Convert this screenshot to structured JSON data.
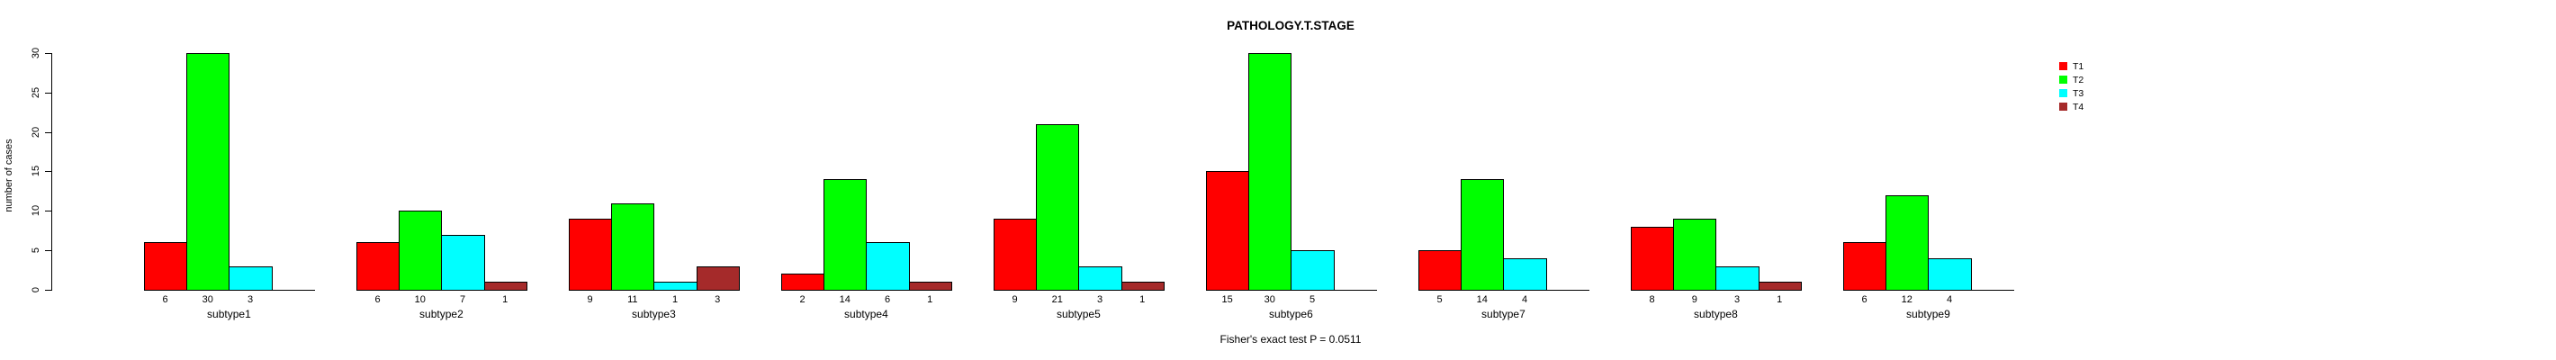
{
  "title": "PATHOLOGY.T.STAGE",
  "annotation": "Fisher's exact test P = 0.0511",
  "y_axis": {
    "label": "number of cases",
    "ticks": [
      "0",
      "5",
      "10",
      "15",
      "20",
      "25",
      "30"
    ]
  },
  "legend": {
    "position": "right",
    "items": [
      {
        "label": "T1",
        "color": "#FF0000"
      },
      {
        "label": "T2",
        "color": "#00FF00"
      },
      {
        "label": "T3",
        "color": "#00FFFF"
      },
      {
        "label": "T4",
        "color": "#A52A2A"
      }
    ]
  },
  "chart_data": {
    "type": "bar",
    "title": "PATHOLOGY.T.STAGE",
    "xlabel": "",
    "ylabel": "number of cases",
    "ylim": [
      0,
      30
    ],
    "grid": false,
    "legend_position": "right",
    "bar_value_labels": "shown under each bar; blank when value is 0",
    "categories": [
      "subtype1",
      "subtype2",
      "subtype3",
      "subtype4",
      "subtype5",
      "subtype6",
      "subtype7",
      "subtype8",
      "subtype9"
    ],
    "series": [
      {
        "name": "T1",
        "color": "#FF0000",
        "values": [
          6,
          6,
          9,
          2,
          9,
          15,
          5,
          8,
          6
        ]
      },
      {
        "name": "T2",
        "color": "#00FF00",
        "values": [
          30,
          10,
          11,
          14,
          21,
          30,
          14,
          9,
          12
        ]
      },
      {
        "name": "T3",
        "color": "#00FFFF",
        "values": [
          3,
          7,
          1,
          6,
          3,
          5,
          4,
          3,
          4
        ]
      },
      {
        "name": "T4",
        "color": "#A52A2A",
        "values": [
          0,
          1,
          3,
          1,
          1,
          0,
          0,
          1,
          0
        ]
      }
    ],
    "annotation": "Fisher's exact test P = 0.0511"
  }
}
